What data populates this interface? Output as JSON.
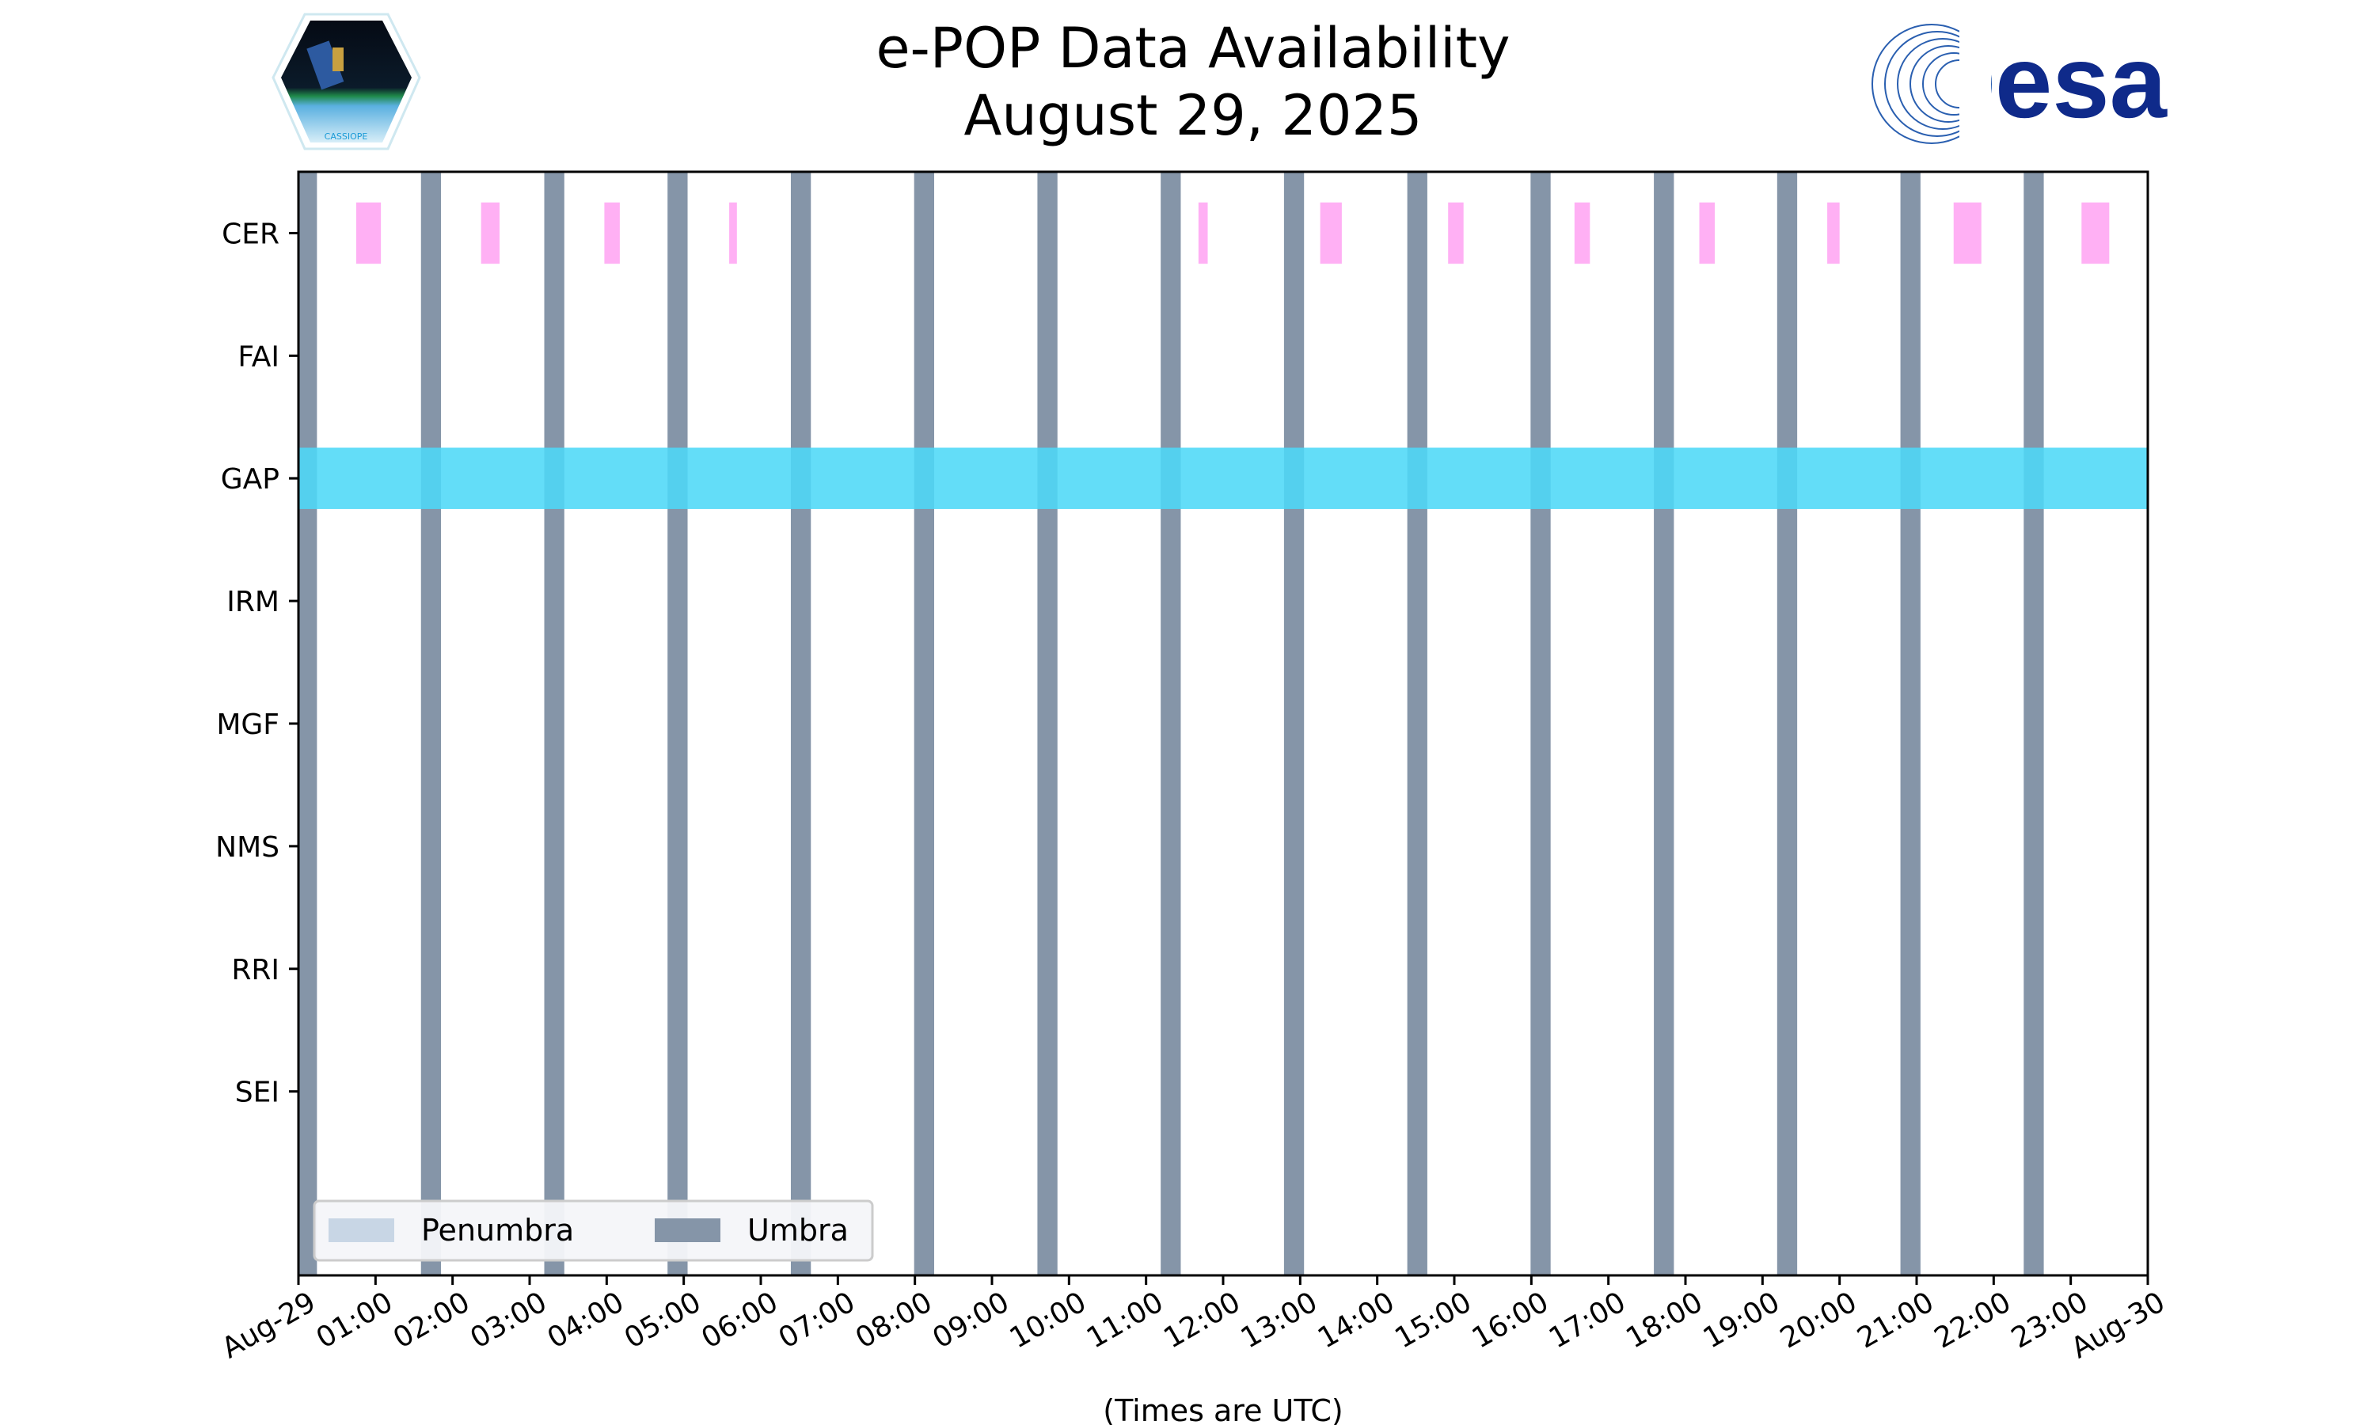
{
  "logos": {
    "left": "CASSIOPE",
    "right": "esa"
  },
  "chart_data": {
    "type": "timeline",
    "title": [
      "e-POP Data Availability",
      "August 29, 2025"
    ],
    "xlabel": "(Times are UTC)",
    "xlim_hours": [
      0,
      24
    ],
    "x_ticks": [
      "Aug-29",
      "01:00",
      "02:00",
      "03:00",
      "04:00",
      "05:00",
      "06:00",
      "07:00",
      "08:00",
      "09:00",
      "10:00",
      "11:00",
      "12:00",
      "13:00",
      "14:00",
      "15:00",
      "16:00",
      "17:00",
      "18:00",
      "19:00",
      "20:00",
      "21:00",
      "22:00",
      "23:00",
      "Aug-30"
    ],
    "categories": [
      "CER",
      "FAI",
      "GAP",
      "IRM",
      "MGF",
      "NMS",
      "RRI",
      "SEI"
    ],
    "ylim": [
      -0.5,
      8.5
    ],
    "legend": {
      "position": "bottom-left",
      "entries": [
        {
          "label": "Penumbra",
          "color": "#c8d6e5"
        },
        {
          "label": "Umbra",
          "color": "#8595a8"
        }
      ]
    },
    "umbra_intervals_hours": [
      [
        0,
        0.24
      ],
      [
        1.59,
        1.85
      ],
      [
        3.19,
        3.45
      ],
      [
        4.79,
        5.05
      ],
      [
        6.39,
        6.65
      ],
      [
        7.99,
        8.25
      ],
      [
        9.59,
        9.85
      ],
      [
        11.19,
        11.45
      ],
      [
        12.79,
        13.05
      ],
      [
        14.39,
        14.65
      ],
      [
        15.99,
        16.25
      ],
      [
        17.59,
        17.85
      ],
      [
        19.19,
        19.45
      ],
      [
        20.79,
        21.05
      ],
      [
        22.39,
        22.65
      ]
    ],
    "penumbra_intervals_hours": [],
    "series": [
      {
        "name": "CER",
        "color": "#ffb0f4",
        "intervals_hours": [
          [
            0.75,
            1.07
          ],
          [
            2.37,
            2.61
          ],
          [
            3.97,
            4.17
          ],
          [
            5.59,
            5.69
          ],
          [
            11.68,
            11.8
          ],
          [
            13.26,
            13.54
          ],
          [
            14.92,
            15.12
          ],
          [
            16.56,
            16.76
          ],
          [
            18.18,
            18.38
          ],
          [
            19.84,
            20.0
          ],
          [
            21.48,
            21.84
          ],
          [
            23.14,
            23.5
          ]
        ]
      },
      {
        "name": "FAI",
        "color": "#ffb0f4",
        "intervals_hours": []
      },
      {
        "name": "GAP",
        "color": "#4dd8f7",
        "intervals_hours": [
          [
            0,
            24
          ]
        ]
      },
      {
        "name": "IRM",
        "color": "#ffb0f4",
        "intervals_hours": []
      },
      {
        "name": "MGF",
        "color": "#ffb0f4",
        "intervals_hours": []
      },
      {
        "name": "NMS",
        "color": "#ffb0f4",
        "intervals_hours": []
      },
      {
        "name": "RRI",
        "color": "#ffb0f4",
        "intervals_hours": []
      },
      {
        "name": "SEI",
        "color": "#ffb0f4",
        "intervals_hours": []
      }
    ]
  }
}
